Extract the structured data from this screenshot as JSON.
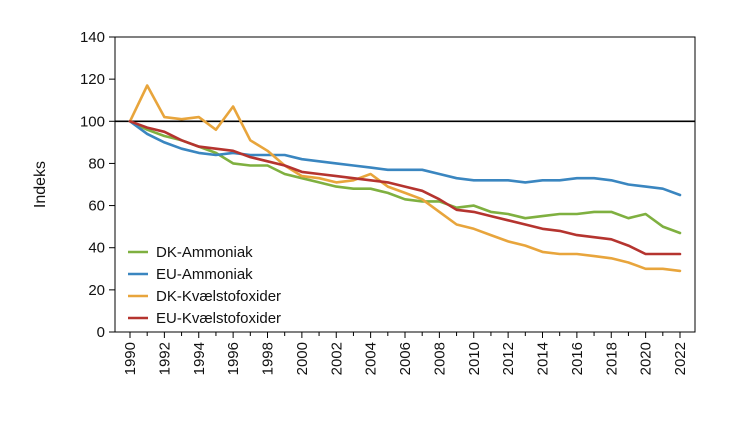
{
  "chart_data": {
    "type": "line",
    "ylabel": "Indeks",
    "xlabel": "",
    "title": "",
    "ylim": [
      0,
      140
    ],
    "xlim": [
      1990,
      2022
    ],
    "y_ticks": [
      "0",
      "20",
      "40",
      "60",
      "80",
      "100",
      "120",
      "140"
    ],
    "x_ticks": [
      "1990",
      "1992",
      "1994",
      "1996",
      "1998",
      "2000",
      "2002",
      "2004",
      "2006",
      "2008",
      "2010",
      "2012",
      "2014",
      "2016",
      "2018",
      "2020",
      "2022"
    ],
    "reference_line": 100,
    "grid": false,
    "legend_position": "bottom-left",
    "x": [
      1990,
      1991,
      1992,
      1993,
      1994,
      1995,
      1996,
      1997,
      1998,
      1999,
      2000,
      2001,
      2002,
      2003,
      2004,
      2005,
      2006,
      2007,
      2008,
      2009,
      2010,
      2011,
      2012,
      2013,
      2014,
      2015,
      2016,
      2017,
      2018,
      2019,
      2020,
      2021,
      2022
    ],
    "series": [
      {
        "name": "DK-Ammoniak",
        "color": "#7fb040",
        "values": [
          100,
          96,
          93,
          91,
          88,
          85,
          80,
          79,
          79,
          75,
          73,
          71,
          69,
          68,
          68,
          66,
          63,
          62,
          62,
          59,
          60,
          57,
          56,
          54,
          55,
          56,
          56,
          57,
          57,
          54,
          56,
          50,
          47
        ]
      },
      {
        "name": "EU-Ammoniak",
        "color": "#3a86c0",
        "values": [
          100,
          94,
          90,
          87,
          85,
          84,
          85,
          84,
          84,
          84,
          82,
          81,
          80,
          79,
          78,
          77,
          77,
          77,
          75,
          73,
          72,
          72,
          72,
          71,
          72,
          72,
          73,
          73,
          72,
          70,
          69,
          68,
          65
        ]
      },
      {
        "name": "DK-Kvælstofoxider",
        "color": "#e8a53c",
        "values": [
          100,
          117,
          102,
          101,
          102,
          96,
          107,
          91,
          86,
          79,
          74,
          73,
          71,
          72,
          75,
          69,
          66,
          63,
          57,
          51,
          49,
          46,
          43,
          41,
          38,
          37,
          37,
          36,
          35,
          33,
          30,
          30,
          29
        ]
      },
      {
        "name": "EU-Kvælstofoxider",
        "color": "#b5342f",
        "values": [
          100,
          97,
          95,
          91,
          88,
          87,
          86,
          83,
          81,
          79,
          76,
          75,
          74,
          73,
          72,
          71,
          69,
          67,
          63,
          58,
          57,
          55,
          53,
          51,
          49,
          48,
          46,
          45,
          44,
          41,
          37,
          37,
          37
        ]
      }
    ]
  }
}
